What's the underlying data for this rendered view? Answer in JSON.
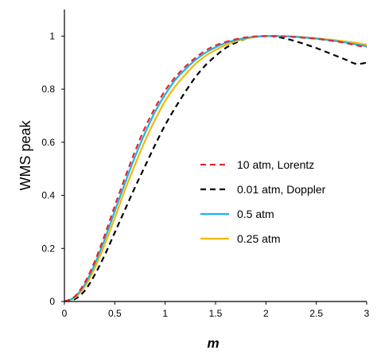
{
  "chart_data": {
    "type": "line",
    "title": "",
    "xlabel": "m",
    "ylabel": "WMS peak",
    "xlim": [
      0,
      3
    ],
    "ylim": [
      0,
      1.1
    ],
    "xticks": [
      "0",
      "0.5",
      "1",
      "1.5",
      "2",
      "2.5",
      "3"
    ],
    "xtick_values": [
      0,
      0.5,
      1,
      1.5,
      2,
      2.5,
      3
    ],
    "yticks": [
      "0",
      "0.2",
      "0.4",
      "0.6",
      "0.8",
      "1"
    ],
    "ytick_values": [
      0,
      0.2,
      0.4,
      0.6,
      0.8,
      1
    ],
    "grid": false,
    "legend_position": "right-center",
    "x": [
      0,
      0.1,
      0.2,
      0.3,
      0.4,
      0.5,
      0.6,
      0.7,
      0.8,
      0.9,
      1.0,
      1.1,
      1.2,
      1.3,
      1.4,
      1.5,
      1.6,
      1.7,
      1.8,
      1.9,
      2.0,
      2.1,
      2.2,
      2.3,
      2.4,
      2.5,
      2.6,
      2.7,
      2.8,
      2.9,
      3.0
    ],
    "series": [
      {
        "name": "10 atm, Lorentz",
        "color": "#e8262b",
        "dash": "dashed",
        "values": [
          0,
          0.018,
          0.07,
          0.15,
          0.25,
          0.36,
          0.465,
          0.565,
          0.655,
          0.73,
          0.795,
          0.845,
          0.885,
          0.918,
          0.945,
          0.965,
          0.978,
          0.988,
          0.995,
          0.999,
          1.0,
          1.0,
          0.999,
          0.996,
          0.993,
          0.99,
          0.985,
          0.98,
          0.973,
          0.965,
          0.958
        ]
      },
      {
        "name": "0.01 atm, Doppler",
        "color": "#000000",
        "dash": "dashed",
        "values": [
          0,
          0.008,
          0.04,
          0.1,
          0.175,
          0.26,
          0.345,
          0.43,
          0.51,
          0.59,
          0.665,
          0.73,
          0.79,
          0.845,
          0.89,
          0.925,
          0.955,
          0.975,
          0.99,
          0.998,
          1.0,
          0.998,
          0.99,
          0.98,
          0.968,
          0.955,
          0.94,
          0.925,
          0.91,
          0.895,
          0.9
        ]
      },
      {
        "name": "0.5 atm",
        "color": "#1eb3e8",
        "dash": "solid",
        "values": [
          0,
          0.016,
          0.063,
          0.14,
          0.235,
          0.34,
          0.445,
          0.545,
          0.635,
          0.715,
          0.78,
          0.835,
          0.875,
          0.91,
          0.937,
          0.958,
          0.974,
          0.985,
          0.993,
          0.998,
          1.0,
          1.0,
          0.999,
          0.997,
          0.994,
          0.99,
          0.986,
          0.981,
          0.975,
          0.968,
          0.962
        ]
      },
      {
        "name": "0.25 atm",
        "color": "#f5b800",
        "dash": "solid",
        "values": [
          0,
          0.013,
          0.055,
          0.125,
          0.215,
          0.315,
          0.42,
          0.515,
          0.605,
          0.685,
          0.755,
          0.81,
          0.855,
          0.895,
          0.925,
          0.948,
          0.966,
          0.98,
          0.99,
          0.997,
          1.0,
          1.0,
          0.999,
          0.998,
          0.995,
          0.992,
          0.988,
          0.984,
          0.979,
          0.974,
          0.968
        ]
      }
    ]
  }
}
